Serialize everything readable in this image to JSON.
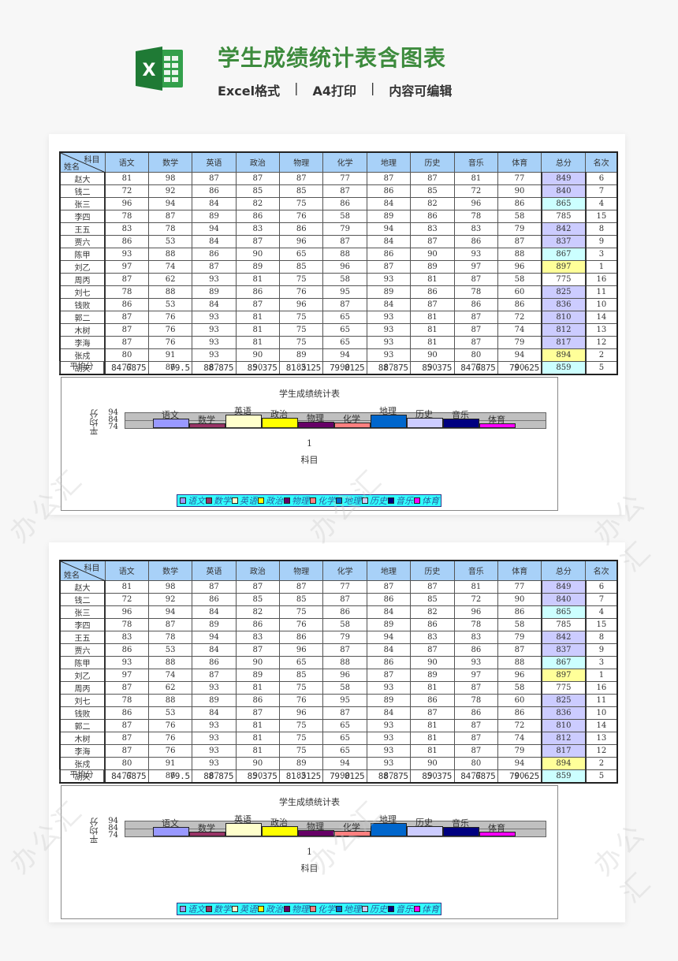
{
  "header": {
    "title": "学生成绩统计表含图表",
    "subtitle": [
      "Excel格式",
      "|",
      "A4打印",
      "|",
      "内容可编辑"
    ],
    "logo_icon": "excel-icon",
    "logo_letter": "X"
  },
  "table": {
    "corner_top": "科目",
    "corner_bottom": "姓名",
    "columns": [
      "语文",
      "数学",
      "英语",
      "政治",
      "物理",
      "化学",
      "地理",
      "历史",
      "音乐",
      "体育",
      "总分",
      "名次"
    ],
    "rows": [
      {
        "name": "赵大",
        "scores": [
          81,
          98,
          87,
          87,
          87,
          77,
          87,
          87,
          81,
          77
        ],
        "total": 849,
        "rank": 6,
        "highlight": "purple"
      },
      {
        "name": "钱二",
        "scores": [
          72,
          92,
          86,
          85,
          85,
          87,
          86,
          85,
          72,
          90
        ],
        "total": 840,
        "rank": 7,
        "highlight": "purple"
      },
      {
        "name": "张三",
        "scores": [
          96,
          94,
          84,
          82,
          75,
          86,
          84,
          82,
          96,
          86
        ],
        "total": 865,
        "rank": 4,
        "highlight": "cyan"
      },
      {
        "name": "李四",
        "scores": [
          78,
          87,
          89,
          86,
          76,
          58,
          89,
          86,
          78,
          58
        ],
        "total": 785,
        "rank": 15,
        "highlight": "none"
      },
      {
        "name": "王五",
        "scores": [
          83,
          78,
          94,
          83,
          86,
          79,
          94,
          83,
          83,
          79
        ],
        "total": 842,
        "rank": 8,
        "highlight": "purple"
      },
      {
        "name": "贾六",
        "scores": [
          86,
          53,
          84,
          87,
          96,
          87,
          84,
          87,
          86,
          87
        ],
        "total": 837,
        "rank": 9,
        "highlight": "purple"
      },
      {
        "name": "陈甲",
        "scores": [
          93,
          88,
          86,
          90,
          65,
          88,
          86,
          90,
          93,
          88
        ],
        "total": 867,
        "rank": 3,
        "highlight": "cyan"
      },
      {
        "name": "刘乙",
        "scores": [
          97,
          74,
          87,
          89,
          85,
          96,
          87,
          89,
          97,
          96
        ],
        "total": 897,
        "rank": 1,
        "highlight": "yellow"
      },
      {
        "name": "周丙",
        "scores": [
          87,
          62,
          93,
          81,
          75,
          58,
          93,
          81,
          87,
          58
        ],
        "total": 775,
        "rank": 16,
        "highlight": "none"
      },
      {
        "name": "刘七",
        "scores": [
          78,
          88,
          89,
          86,
          76,
          95,
          89,
          86,
          78,
          60
        ],
        "total": 825,
        "rank": 11,
        "highlight": "purple"
      },
      {
        "name": "钱败",
        "scores": [
          86,
          53,
          84,
          87,
          96,
          87,
          84,
          87,
          86,
          86
        ],
        "total": 836,
        "rank": 10,
        "highlight": "purple"
      },
      {
        "name": "郭二",
        "scores": [
          87,
          76,
          93,
          81,
          75,
          65,
          93,
          81,
          87,
          72
        ],
        "total": 810,
        "rank": 14,
        "highlight": "purple"
      },
      {
        "name": "木树",
        "scores": [
          87,
          76,
          93,
          81,
          75,
          65,
          93,
          81,
          87,
          74
        ],
        "total": 812,
        "rank": 13,
        "highlight": "purple"
      },
      {
        "name": "李海",
        "scores": [
          87,
          76,
          93,
          81,
          75,
          65,
          93,
          81,
          87,
          79
        ],
        "total": 817,
        "rank": 12,
        "highlight": "purple"
      },
      {
        "name": "张戍",
        "scores": [
          80,
          91,
          93,
          90,
          89,
          94,
          93,
          90,
          80,
          94
        ],
        "total": 894,
        "rank": 2,
        "highlight": "yellow"
      },
      {
        "name": "胡天",
        "scores": [
          77,
          86,
          87,
          90,
          85,
          90,
          87,
          90,
          77,
          90
        ],
        "total": 859,
        "rank": 5,
        "highlight": "cyan"
      }
    ],
    "average_label": "平均分",
    "averages": [
      "84.6875",
      "79.5",
      "88.875",
      "85.375",
      "81.3125",
      "79.8125",
      "88.875",
      "85.375",
      "84.6875",
      "79.625"
    ]
  },
  "chart_data": {
    "type": "bar",
    "title": "学生成绩统计表",
    "xlabel": "科目",
    "ylabel": "平均分",
    "x_tick": "1",
    "y_ticks": [
      "94",
      "84",
      "74"
    ],
    "ylim": [
      74,
      94
    ],
    "categories": [
      "1"
    ],
    "series": [
      {
        "name": "语文",
        "values": [
          84.6875
        ],
        "color": "#9999ff"
      },
      {
        "name": "数学",
        "values": [
          79.5
        ],
        "color": "#993366"
      },
      {
        "name": "英语",
        "values": [
          88.875
        ],
        "color": "#ffffcc"
      },
      {
        "name": "政治",
        "values": [
          85.375
        ],
        "color": "#ffff00"
      },
      {
        "name": "物理",
        "values": [
          81.3125
        ],
        "color": "#660066"
      },
      {
        "name": "化学",
        "values": [
          79.8125
        ],
        "color": "#ff8080"
      },
      {
        "name": "地理",
        "values": [
          88.875
        ],
        "color": "#0066cc"
      },
      {
        "name": "历史",
        "values": [
          85.375
        ],
        "color": "#ccccff"
      },
      {
        "name": "音乐",
        "values": [
          84.6875
        ],
        "color": "#000080"
      },
      {
        "name": "体育",
        "values": [
          79.625
        ],
        "color": "#ff00ff"
      }
    ],
    "legend_position": "bottom",
    "legend_bg": "#33ffff"
  },
  "colors": {
    "title_green": "#3d8b3d",
    "header_blue": "#a8d1f8",
    "highlight_purple": "#ccccff",
    "highlight_cyan": "#ccffff",
    "highlight_yellow": "#ffff99"
  },
  "watermark": "办公汇"
}
